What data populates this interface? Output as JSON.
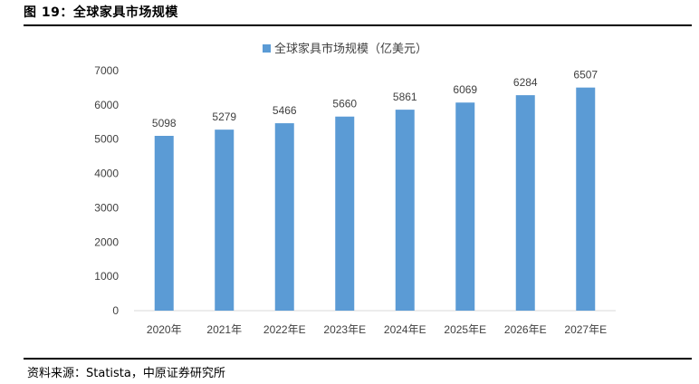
{
  "figure": {
    "title": "图 19：全球家具市场规模",
    "source": "资料来源：Statista，中原证券研究所"
  },
  "chart_data": {
    "type": "bar",
    "title": "",
    "categories": [
      "2020年",
      "2021年",
      "2022年E",
      "2023年E",
      "2024年E",
      "2025年E",
      "2026年E",
      "2027年E"
    ],
    "series": [
      {
        "name": "全球家具市场规模（亿美元）",
        "values": [
          5098,
          5279,
          5466,
          5660,
          5861,
          6069,
          6284,
          6507
        ],
        "color": "#5b9bd5"
      }
    ],
    "yticks": [
      0,
      1000,
      2000,
      3000,
      4000,
      5000,
      6000,
      7000
    ],
    "ylim": [
      0,
      7000
    ],
    "xlabel": "",
    "ylabel": "",
    "grid": false,
    "legend": "top-center",
    "data_labels": true
  }
}
